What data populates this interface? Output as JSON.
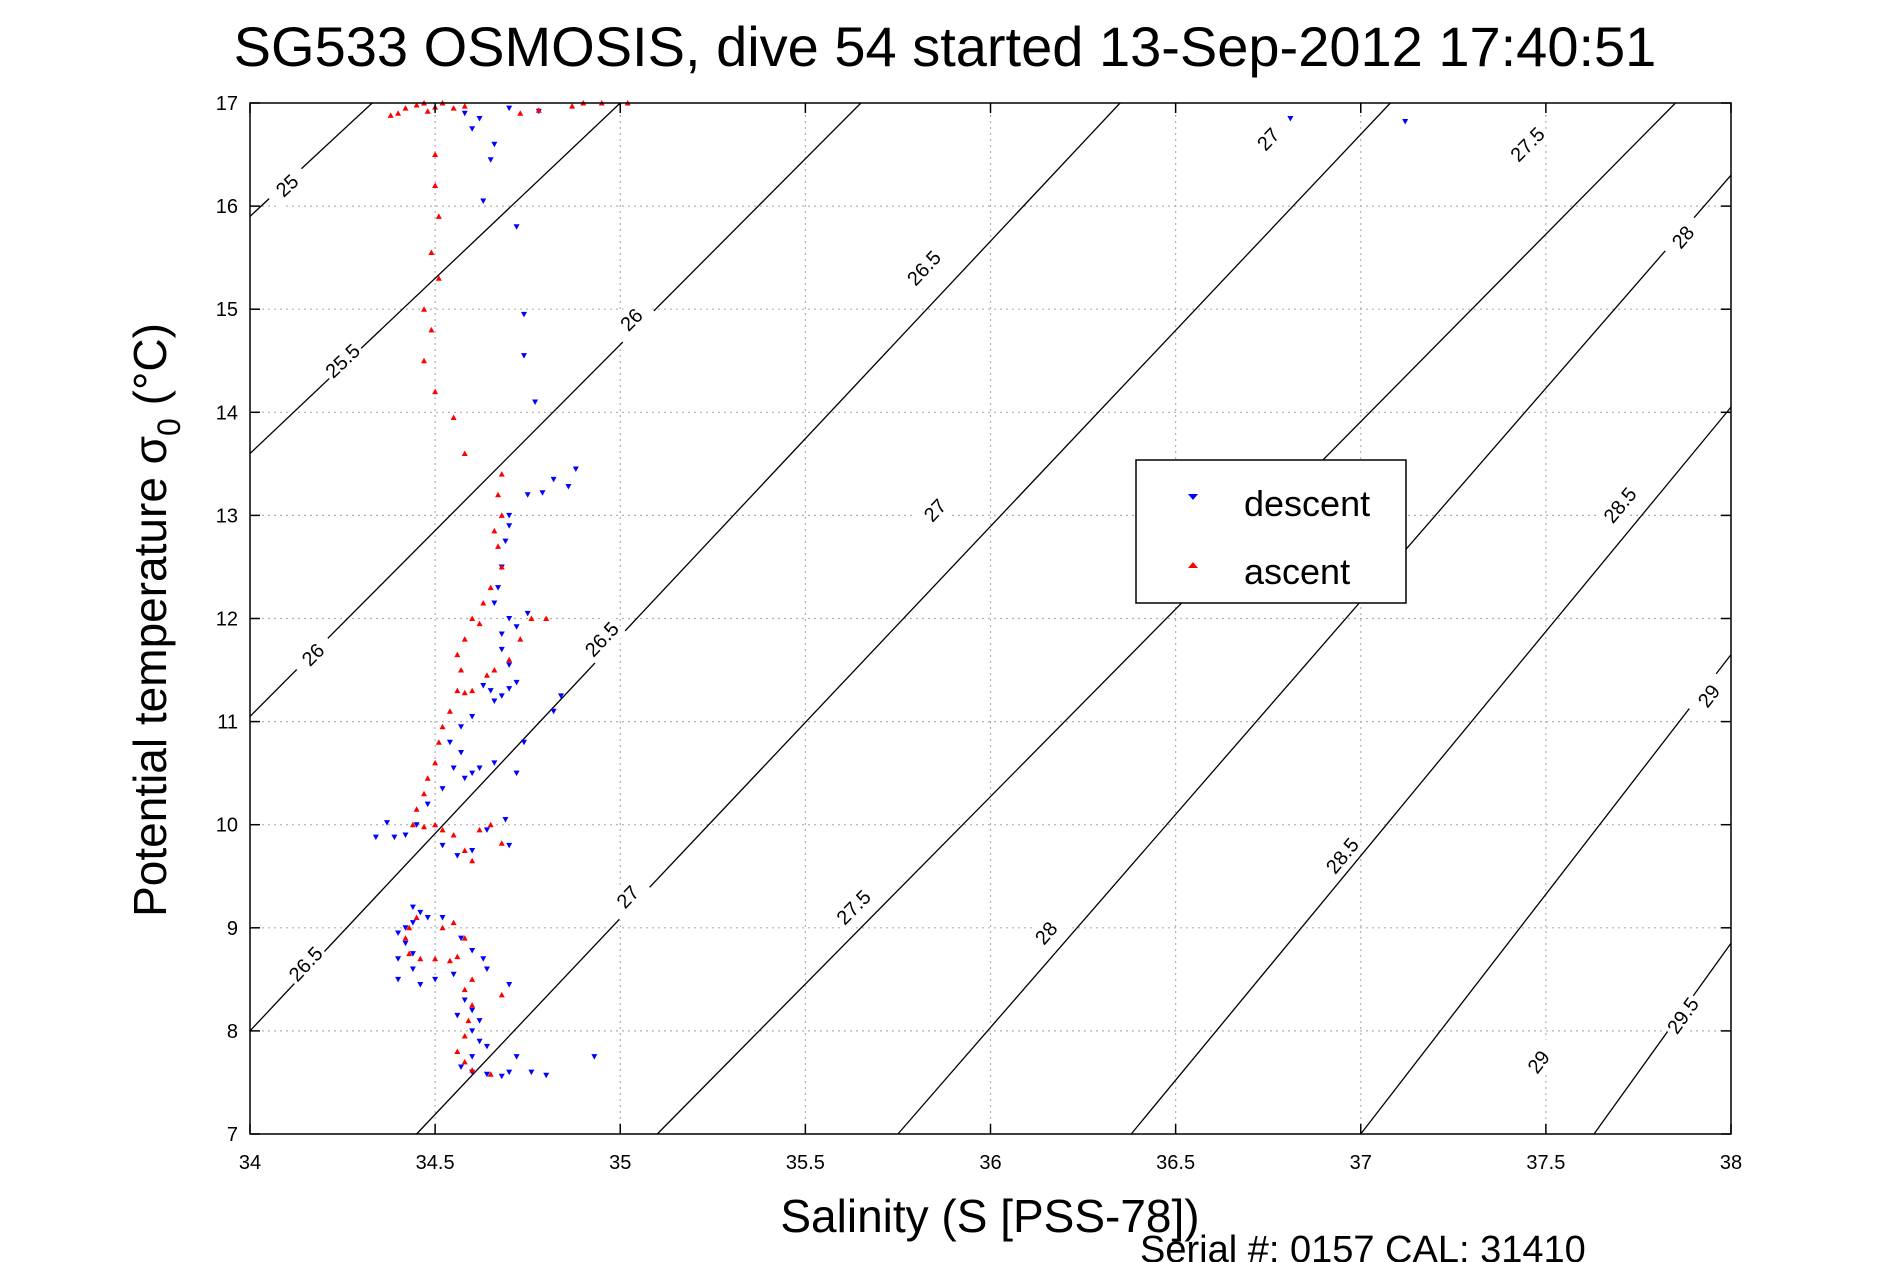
{
  "chart_data": {
    "type": "scatter",
    "title": "SG533 OSMOSIS, dive 54 started 13-Sep-2012 17:40:51",
    "xlabel": "Salinity (S [PSS-78])",
    "ylabel_main": "Potential temperature σ",
    "ylabel_sub": "0",
    "ylabel_unit": " (°C)",
    "footer": "Serial #: 0157  CAL: 31410",
    "xlim": [
      34,
      38
    ],
    "ylim": [
      7,
      17
    ],
    "x_ticks": [
      34,
      34.5,
      35,
      35.5,
      36,
      36.5,
      37,
      37.5,
      38
    ],
    "x_tick_labels": [
      "34",
      "34.5",
      "35",
      "35.5",
      "36",
      "36.5",
      "37",
      "37.5",
      "38"
    ],
    "y_ticks": [
      7,
      8,
      9,
      10,
      11,
      12,
      13,
      14,
      15,
      16,
      17
    ],
    "y_tick_labels": [
      "7",
      "8",
      "9",
      "10",
      "11",
      "12",
      "13",
      "14",
      "15",
      "16",
      "17"
    ],
    "grid": true,
    "legend_position": "center-right",
    "colors": {
      "descent": "#0000ff",
      "ascent": "#ff0000",
      "contour": "#000000",
      "grid": "#b0b0b0"
    },
    "contours": [
      {
        "value": "25",
        "points": [
          [
            34,
            15.9
          ],
          [
            34.33,
            17
          ]
        ],
        "labels": [
          [
            34.1,
            16.2
          ]
        ]
      },
      {
        "value": "25.5",
        "points": [
          [
            34,
            13.6
          ],
          [
            35,
            17
          ]
        ],
        "labels": [
          [
            34.25,
            14.5
          ]
        ]
      },
      {
        "value": "26",
        "points": [
          [
            34,
            11.05
          ],
          [
            35.65,
            17
          ]
        ],
        "labels": [
          [
            34.17,
            11.65
          ],
          [
            35.03,
            14.9
          ]
        ]
      },
      {
        "value": "26.5",
        "points": [
          [
            34,
            8.0
          ],
          [
            36.35,
            17
          ]
        ],
        "labels": [
          [
            34.15,
            8.65
          ],
          [
            34.95,
            11.8
          ],
          [
            35.82,
            15.4
          ]
        ]
      },
      {
        "value": "27",
        "points": [
          [
            34.45,
            7
          ],
          [
            37.08,
            17
          ]
        ],
        "labels": [
          [
            35.02,
            9.3
          ],
          [
            35.85,
            13.05
          ],
          [
            36.75,
            16.65
          ]
        ]
      },
      {
        "value": "27.5",
        "points": [
          [
            35.1,
            7
          ],
          [
            37.85,
            17
          ]
        ],
        "labels": [
          [
            35.63,
            9.2
          ],
          [
            37.45,
            16.6
          ]
        ]
      },
      {
        "value": "28",
        "points": [
          [
            35.75,
            7
          ],
          [
            38,
            16.3
          ]
        ],
        "labels": [
          [
            36.15,
            8.95
          ],
          [
            37.87,
            15.7
          ]
        ]
      },
      {
        "value": "28.5",
        "points": [
          [
            36.38,
            7
          ],
          [
            38,
            14.05
          ]
        ],
        "labels": [
          [
            36.95,
            9.7
          ],
          [
            37.7,
            13.1
          ]
        ]
      },
      {
        "value": "29",
        "points": [
          [
            37,
            7
          ],
          [
            38,
            11.65
          ]
        ],
        "labels": [
          [
            37.48,
            7.7
          ],
          [
            37.94,
            11.25
          ]
        ]
      },
      {
        "value": "29.5",
        "points": [
          [
            37.63,
            7
          ],
          [
            38,
            8.85
          ]
        ],
        "labels": [
          [
            37.87,
            8.15
          ]
        ]
      }
    ],
    "series": [
      {
        "name": "descent",
        "marker": "triangle-down",
        "points": [
          [
            34.58,
            16.9
          ],
          [
            34.62,
            16.85
          ],
          [
            34.6,
            16.75
          ],
          [
            34.66,
            16.6
          ],
          [
            34.7,
            16.95
          ],
          [
            34.78,
            16.92
          ],
          [
            34.65,
            16.45
          ],
          [
            34.63,
            16.05
          ],
          [
            34.72,
            15.8
          ],
          [
            34.74,
            14.95
          ],
          [
            34.74,
            14.55
          ],
          [
            34.77,
            14.1
          ],
          [
            36.81,
            16.85
          ],
          [
            37.12,
            16.82
          ],
          [
            34.75,
            13.2
          ],
          [
            34.79,
            13.22
          ],
          [
            34.86,
            13.28
          ],
          [
            34.88,
            13.45
          ],
          [
            34.82,
            13.35
          ],
          [
            34.7,
            13.0
          ],
          [
            34.69,
            12.75
          ],
          [
            34.68,
            12.5
          ],
          [
            34.67,
            12.3
          ],
          [
            34.7,
            12.9
          ],
          [
            34.66,
            12.15
          ],
          [
            34.7,
            12.0
          ],
          [
            34.72,
            11.92
          ],
          [
            34.75,
            12.05
          ],
          [
            34.68,
            11.85
          ],
          [
            34.68,
            11.7
          ],
          [
            34.7,
            11.55
          ],
          [
            34.63,
            11.35
          ],
          [
            34.65,
            11.3
          ],
          [
            34.68,
            11.25
          ],
          [
            34.7,
            11.32
          ],
          [
            34.72,
            11.38
          ],
          [
            34.66,
            11.2
          ],
          [
            34.82,
            11.1
          ],
          [
            34.84,
            11.25
          ],
          [
            34.6,
            11.05
          ],
          [
            34.57,
            10.95
          ],
          [
            34.54,
            10.8
          ],
          [
            34.57,
            10.7
          ],
          [
            34.55,
            10.55
          ],
          [
            34.58,
            10.45
          ],
          [
            34.6,
            10.5
          ],
          [
            34.62,
            10.55
          ],
          [
            34.66,
            10.6
          ],
          [
            34.72,
            10.5
          ],
          [
            34.74,
            10.8
          ],
          [
            34.52,
            10.35
          ],
          [
            34.48,
            10.2
          ],
          [
            34.45,
            10.0
          ],
          [
            34.42,
            9.9
          ],
          [
            34.39,
            9.88
          ],
          [
            34.34,
            9.88
          ],
          [
            34.37,
            10.02
          ],
          [
            34.52,
            9.8
          ],
          [
            34.56,
            9.7
          ],
          [
            34.6,
            9.75
          ],
          [
            34.64,
            9.95
          ],
          [
            34.69,
            10.05
          ],
          [
            34.7,
            9.8
          ],
          [
            34.44,
            9.2
          ],
          [
            34.46,
            9.15
          ],
          [
            34.48,
            9.1
          ],
          [
            34.44,
            9.05
          ],
          [
            34.42,
            9.0
          ],
          [
            34.4,
            8.95
          ],
          [
            34.42,
            8.85
          ],
          [
            34.44,
            8.75
          ],
          [
            34.4,
            8.7
          ],
          [
            34.44,
            8.6
          ],
          [
            34.4,
            8.5
          ],
          [
            34.46,
            8.45
          ],
          [
            34.5,
            8.5
          ],
          [
            34.55,
            8.55
          ],
          [
            34.52,
            9.1
          ],
          [
            34.57,
            8.9
          ],
          [
            34.6,
            8.78
          ],
          [
            34.63,
            8.7
          ],
          [
            34.64,
            8.6
          ],
          [
            34.58,
            8.3
          ],
          [
            34.6,
            8.2
          ],
          [
            34.62,
            8.1
          ],
          [
            34.56,
            8.15
          ],
          [
            34.6,
            8.0
          ],
          [
            34.62,
            7.9
          ],
          [
            34.64,
            7.85
          ],
          [
            34.6,
            7.75
          ],
          [
            34.57,
            7.65
          ],
          [
            34.6,
            7.6
          ],
          [
            34.64,
            7.58
          ],
          [
            34.68,
            7.56
          ],
          [
            34.7,
            7.6
          ],
          [
            34.72,
            7.75
          ],
          [
            34.7,
            8.45
          ],
          [
            34.93,
            7.75
          ],
          [
            34.76,
            7.6
          ],
          [
            34.8,
            7.57
          ]
        ]
      },
      {
        "name": "ascent",
        "marker": "triangle-up",
        "points": [
          [
            34.47,
            17.0
          ],
          [
            34.5,
            16.96
          ],
          [
            34.52,
            17.0
          ],
          [
            34.55,
            16.95
          ],
          [
            34.48,
            16.92
          ],
          [
            34.45,
            16.98
          ],
          [
            34.42,
            16.95
          ],
          [
            34.4,
            16.9
          ],
          [
            34.38,
            16.88
          ],
          [
            34.73,
            16.9
          ],
          [
            34.78,
            16.93
          ],
          [
            34.87,
            16.97
          ],
          [
            34.9,
            17.0
          ],
          [
            34.95,
            17.0
          ],
          [
            35.02,
            17.0
          ],
          [
            34.58,
            16.97
          ],
          [
            34.5,
            16.5
          ],
          [
            34.5,
            16.2
          ],
          [
            34.51,
            15.9
          ],
          [
            34.49,
            15.55
          ],
          [
            34.51,
            15.3
          ],
          [
            34.47,
            15.0
          ],
          [
            34.49,
            14.8
          ],
          [
            34.47,
            14.5
          ],
          [
            34.5,
            14.2
          ],
          [
            34.55,
            13.95
          ],
          [
            34.58,
            13.6
          ],
          [
            34.68,
            13.4
          ],
          [
            34.67,
            13.2
          ],
          [
            34.68,
            13.0
          ],
          [
            34.66,
            12.85
          ],
          [
            34.67,
            12.7
          ],
          [
            34.68,
            12.5
          ],
          [
            34.65,
            12.3
          ],
          [
            34.63,
            12.15
          ],
          [
            34.6,
            12.0
          ],
          [
            34.62,
            11.95
          ],
          [
            34.58,
            11.8
          ],
          [
            34.56,
            11.65
          ],
          [
            34.57,
            11.5
          ],
          [
            34.56,
            11.3
          ],
          [
            34.58,
            11.28
          ],
          [
            34.6,
            11.3
          ],
          [
            34.64,
            11.45
          ],
          [
            34.66,
            11.5
          ],
          [
            34.7,
            11.6
          ],
          [
            34.73,
            11.8
          ],
          [
            34.76,
            12.0
          ],
          [
            34.8,
            12.0
          ],
          [
            34.54,
            11.1
          ],
          [
            34.52,
            10.95
          ],
          [
            34.51,
            10.8
          ],
          [
            34.5,
            10.6
          ],
          [
            34.48,
            10.45
          ],
          [
            34.47,
            10.3
          ],
          [
            34.45,
            10.15
          ],
          [
            34.44,
            10.0
          ],
          [
            34.47,
            9.98
          ],
          [
            34.5,
            10.0
          ],
          [
            34.52,
            9.95
          ],
          [
            34.55,
            9.9
          ],
          [
            34.58,
            9.75
          ],
          [
            34.6,
            9.65
          ],
          [
            34.62,
            9.95
          ],
          [
            34.65,
            10.0
          ],
          [
            34.68,
            9.82
          ],
          [
            34.45,
            9.1
          ],
          [
            34.43,
            9.0
          ],
          [
            34.42,
            8.9
          ],
          [
            34.43,
            8.75
          ],
          [
            34.46,
            8.7
          ],
          [
            34.5,
            8.7
          ],
          [
            34.54,
            8.68
          ],
          [
            34.56,
            8.72
          ],
          [
            34.52,
            9.0
          ],
          [
            34.55,
            9.05
          ],
          [
            34.58,
            8.9
          ],
          [
            34.6,
            8.5
          ],
          [
            34.58,
            8.4
          ],
          [
            34.6,
            8.25
          ],
          [
            34.59,
            8.1
          ],
          [
            34.58,
            7.95
          ],
          [
            34.56,
            7.8
          ],
          [
            34.58,
            7.7
          ],
          [
            34.6,
            7.62
          ],
          [
            34.65,
            7.58
          ],
          [
            34.68,
            8.35
          ]
        ]
      }
    ]
  }
}
